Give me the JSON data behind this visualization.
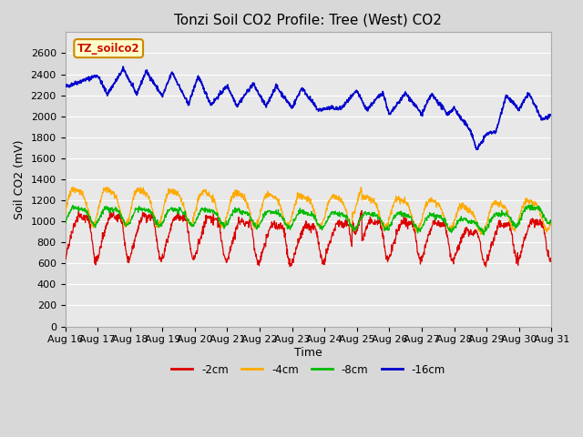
{
  "title": "Tonzi Soil CO2 Profile: Tree (West) CO2",
  "xlabel": "Time",
  "ylabel": "Soil CO2 (mV)",
  "ylim": [
    0,
    2800
  ],
  "yticks": [
    0,
    200,
    400,
    600,
    800,
    1000,
    1200,
    1400,
    1600,
    1800,
    2000,
    2200,
    2400,
    2600
  ],
  "legend_labels": [
    "-2cm",
    "-4cm",
    "-8cm",
    "-16cm"
  ],
  "legend_colors": [
    "#dd0000",
    "#ffaa00",
    "#00bb00",
    "#0000cc"
  ],
  "watermark_text": "TZ_soilco2",
  "watermark_bg": "#ffffcc",
  "watermark_border": "#cc8800",
  "background_color": "#d8d8d8",
  "plot_bg": "#e8e8e8",
  "grid_color": "#ffffff",
  "title_fontsize": 11,
  "axis_label_fontsize": 9,
  "tick_fontsize": 8
}
